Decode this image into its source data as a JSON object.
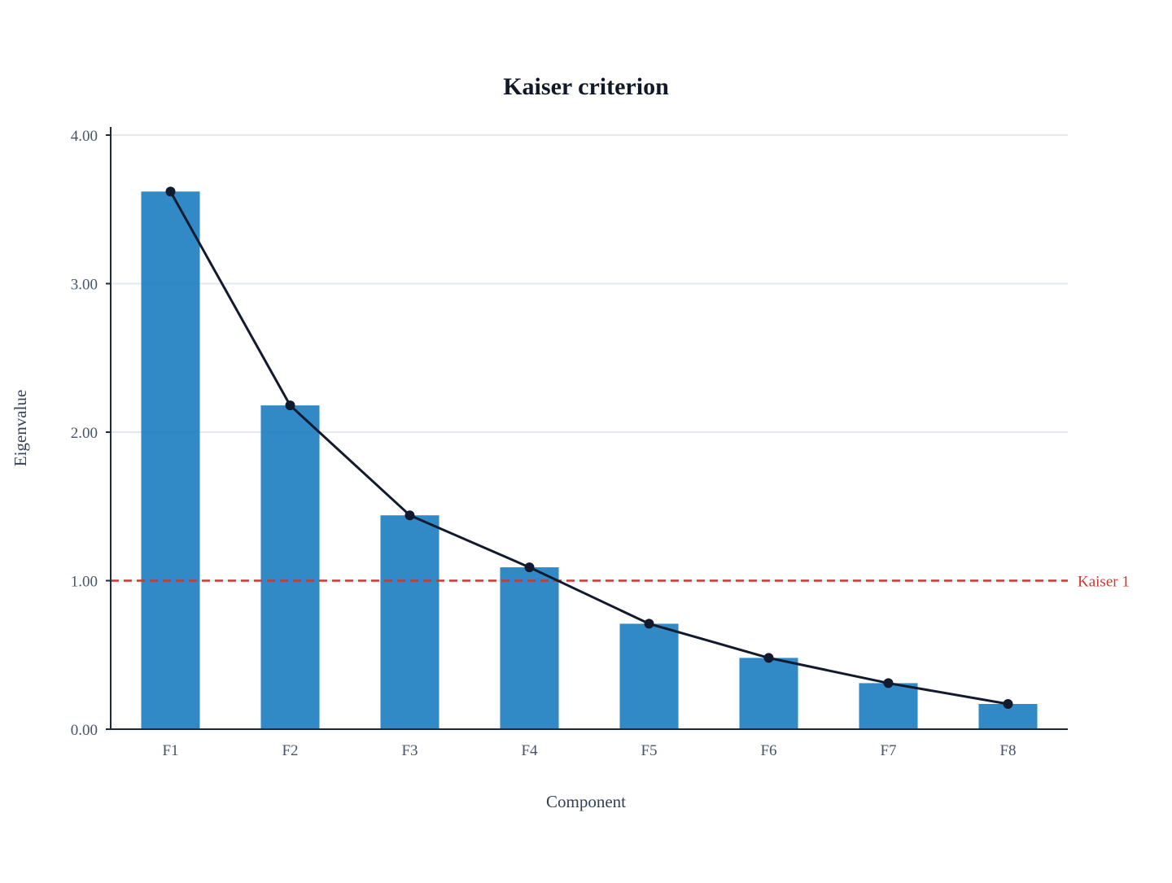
{
  "chart_data": {
    "type": "bar",
    "title": "Kaiser criterion",
    "xlabel": "Component",
    "ylabel": "Eigenvalue",
    "categories": [
      "F1",
      "F2",
      "F3",
      "F4",
      "F5",
      "F6",
      "F7",
      "F8"
    ],
    "series": [
      {
        "type": "bar",
        "values": [
          3.62,
          2.18,
          1.44,
          1.09,
          0.71,
          0.48,
          0.31,
          0.17
        ],
        "color": "#1f7fc1"
      },
      {
        "type": "line",
        "values": [
          3.62,
          2.18,
          1.44,
          1.09,
          0.71,
          0.48,
          0.31,
          0.17
        ],
        "color": "#111a2e"
      }
    ],
    "ylim": [
      0,
      4
    ],
    "yticks": [
      0,
      1,
      2,
      3,
      4
    ],
    "ytick_labels": [
      "0.00",
      "1.00",
      "2.00",
      "3.00",
      "4.00"
    ],
    "grid": true,
    "reference_line": {
      "value": 1,
      "label": "Kaiser 1",
      "color": "#d0352f",
      "style": "dashed"
    }
  }
}
